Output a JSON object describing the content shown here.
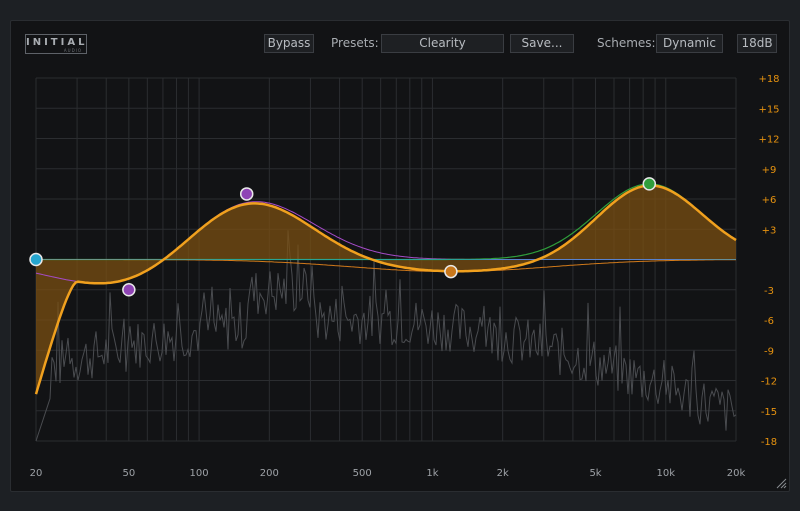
{
  "app": {
    "logo_text": "INITIAL",
    "logo_sub": "AUDIO"
  },
  "toolbar": {
    "bypass_label": "Bypass",
    "presets_label": "Presets:",
    "preset_value": "Clearity",
    "save_label": "Save...",
    "schemes_label": "Schemes:",
    "scheme_value": "Dynamic",
    "range_label": "18dB"
  },
  "graph": {
    "freq_ticks": [
      {
        "f": 20,
        "label": "20"
      },
      {
        "f": 50,
        "label": "50"
      },
      {
        "f": 100,
        "label": "100"
      },
      {
        "f": 200,
        "label": "200"
      },
      {
        "f": 500,
        "label": "500"
      },
      {
        "f": 1000,
        "label": "1k"
      },
      {
        "f": 2000,
        "label": "2k"
      },
      {
        "f": 5000,
        "label": "5k"
      },
      {
        "f": 10000,
        "label": "10k"
      },
      {
        "f": 20000,
        "label": "20k"
      }
    ],
    "db_ticks": [
      18,
      15,
      12,
      9,
      6,
      3,
      0,
      -3,
      -6,
      -9,
      -12,
      -15,
      -18
    ],
    "db_tick_labels": [
      "+18",
      "+15",
      "+12",
      "+9",
      "+6",
      "+3",
      "",
      "-3",
      "-6",
      "-9",
      "-12",
      "-15",
      "-18"
    ],
    "range_db": 18,
    "freq_min": 20,
    "freq_max": 20000,
    "colors": {
      "main_curve": "#f0a01e",
      "fill": "#7a4f12",
      "violet": "#a54bc8",
      "green": "#2f9e3b",
      "orange_band": "#d27a1a",
      "cyan": "#26a6cf",
      "grid": "#2b2d30",
      "spectrum": "#4a4c50"
    },
    "nodes": [
      {
        "name": "band-1-node",
        "freq": 20,
        "gain": 0,
        "color": "#26a6cf"
      },
      {
        "name": "band-2-node",
        "freq": 50,
        "gain": -3,
        "color": "#8f44b5"
      },
      {
        "name": "band-3-node",
        "freq": 160,
        "gain": 6.5,
        "color": "#8f44b5"
      },
      {
        "name": "band-4-node",
        "freq": 1200,
        "gain": -1.2,
        "color": "#c8771b"
      },
      {
        "name": "band-5-node",
        "freq": 8500,
        "gain": 7.5,
        "color": "#2f9e3b"
      }
    ]
  }
}
